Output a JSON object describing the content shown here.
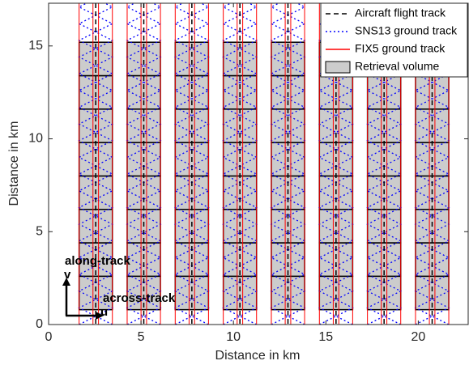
{
  "chart_data": {
    "type": "track-map",
    "xlabel": "Distance in km",
    "ylabel": "Distance in km",
    "xlim": [
      0,
      22.7
    ],
    "ylim": [
      0,
      17.3
    ],
    "xticks": [
      0,
      5,
      10,
      15,
      20
    ],
    "yticks": [
      0,
      5,
      10,
      15
    ],
    "legend_location": "northeast",
    "series": [
      {
        "name": "Aircraft flight track",
        "color": "#000000",
        "style": "dashed",
        "x": [
          2.55,
          5.15,
          7.75,
          10.35,
          12.95,
          15.55,
          18.15,
          20.75
        ]
      },
      {
        "name": "SNS13 ground track",
        "color": "#0000ff",
        "style": "dotted",
        "x": [
          2.55,
          5.15,
          7.75,
          10.35,
          12.95,
          15.55,
          18.15,
          20.75
        ],
        "swath_width": 1.8,
        "period": 1.8
      },
      {
        "name": "FIX5 ground track",
        "color": "#ff0000",
        "style": "solid",
        "x": [
          2.55,
          5.15,
          7.75,
          10.35,
          12.95,
          15.55,
          18.15,
          20.75
        ],
        "offsets": [
          -0.9,
          -0.15,
          0.15,
          0.9
        ]
      },
      {
        "name": "Retrieval volume",
        "color": "#cccccc",
        "edge_color": "#000000",
        "style": "patch",
        "x_edges": [
          [
            1.65,
            3.45
          ],
          [
            4.25,
            6.05
          ],
          [
            6.85,
            8.65
          ],
          [
            9.45,
            11.25
          ],
          [
            12.05,
            13.85
          ],
          [
            14.65,
            16.45
          ],
          [
            17.25,
            19.05
          ],
          [
            19.85,
            21.65
          ]
        ],
        "y_edges": [
          0.8,
          2.6,
          4.4,
          6.2,
          8.0,
          9.8,
          11.6,
          13.4,
          15.2
        ]
      }
    ],
    "annotations": [
      "along-track",
      "v",
      "across-track",
      "u"
    ]
  }
}
